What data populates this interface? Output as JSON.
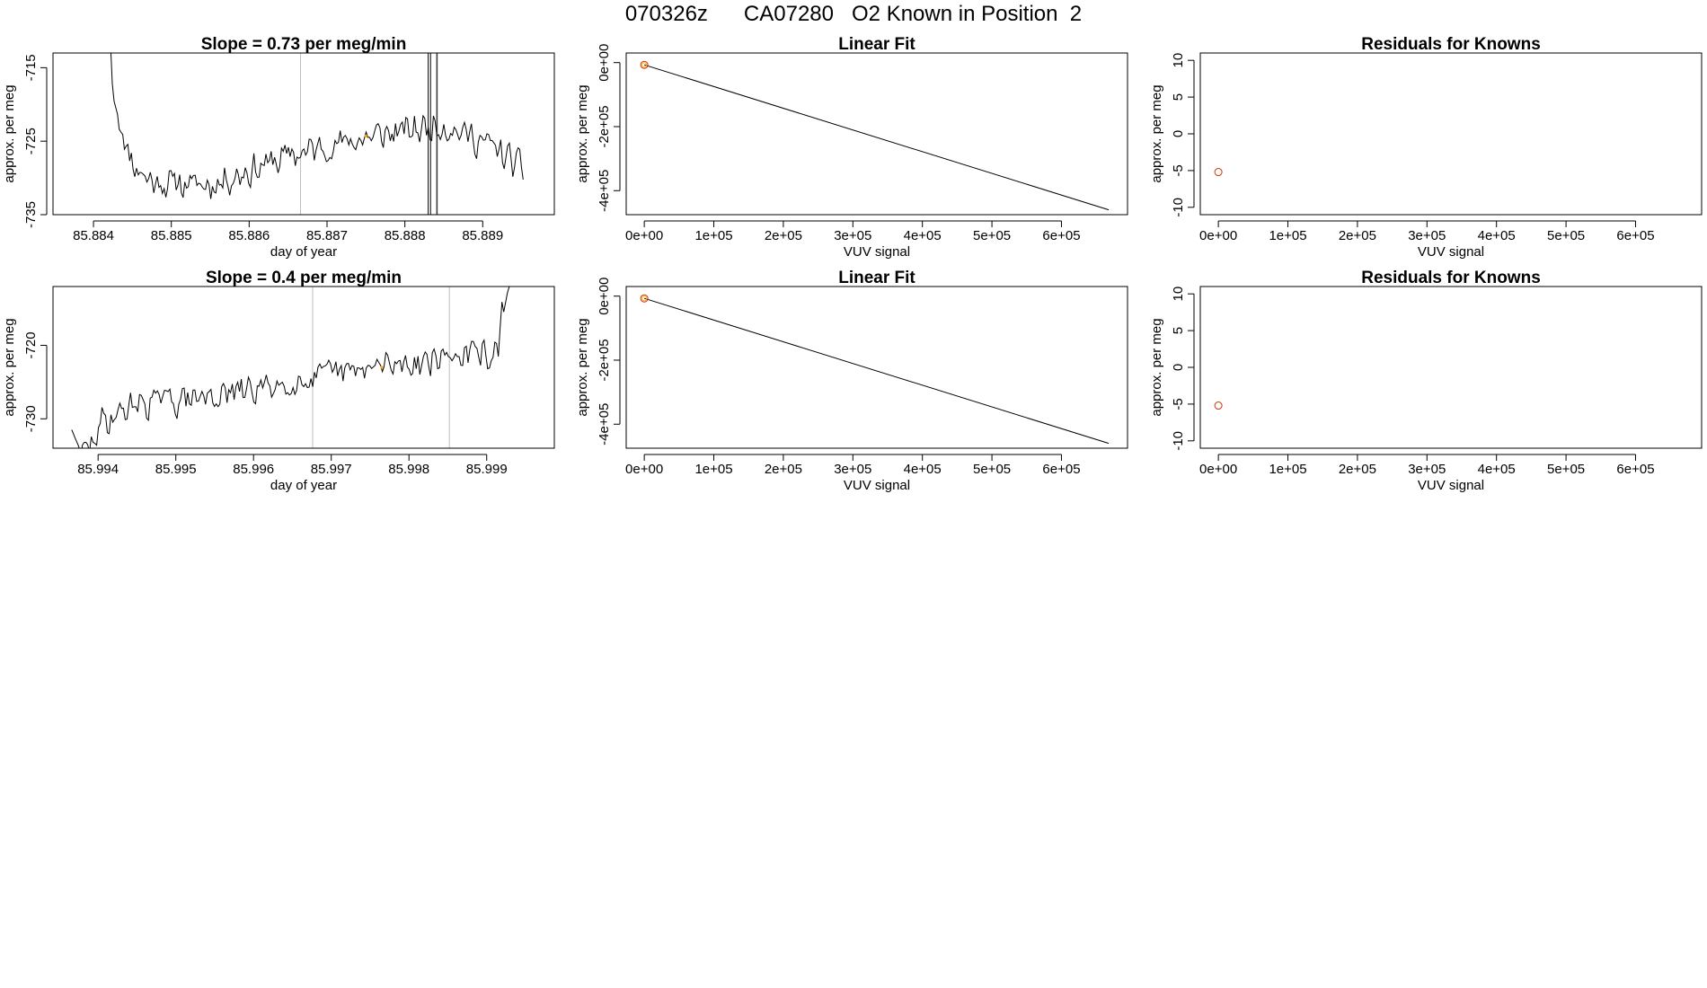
{
  "figure_title": "070326z      CA07280   O2 Known in Position  2",
  "colors": {
    "line": "#000000",
    "vline": "#bebebe",
    "point": "#cc3300",
    "orange": "#ffa500"
  },
  "chart_data": [
    {
      "id": "ts1",
      "type": "line",
      "title": "Slope =  0.73  per meg/min",
      "xlabel": "day of year",
      "ylabel": "approx. per meg",
      "xlim": [
        85.88348,
        85.88992
      ],
      "ylim": [
        -735,
        -713
      ],
      "xticks": [
        85.884,
        85.885,
        85.886,
        85.887,
        85.888,
        85.889
      ],
      "xtick_labels": [
        "85.884",
        "85.885",
        "85.886",
        "85.887",
        "85.888",
        "85.889"
      ],
      "yticks": [
        -735,
        -725,
        -715
      ],
      "ytick_labels": [
        "-735",
        "-725",
        "-715"
      ],
      "vlines": [
        85.88666,
        85.88842
      ],
      "spikes": [
        [
          85.8883,
          -750,
          -705
        ],
        [
          85.88833,
          -705,
          -750
        ],
        [
          85.88841,
          -750,
          -705
        ]
      ],
      "highlight": [
        85.8875,
        -724.3
      ],
      "x_start": 85.88422,
      "x_end": 85.88952,
      "n": 240,
      "seed": 11,
      "knots": [
        [
          85.88422,
          -712
        ],
        [
          85.88425,
          -719
        ],
        [
          85.88435,
          -723
        ],
        [
          85.8845,
          -728
        ],
        [
          85.88475,
          -730.5
        ],
        [
          85.8855,
          -731
        ],
        [
          85.8865,
          -727
        ],
        [
          85.8875,
          -724.5
        ],
        [
          85.8885,
          -722.8
        ],
        [
          85.8891,
          -725.5
        ],
        [
          85.88952,
          -729
        ]
      ]
    },
    {
      "id": "fit1",
      "type": "scatter+line",
      "title": "Linear Fit",
      "xlabel": "VUV signal",
      "ylabel": "approx. per meg",
      "xlim": [
        -26000,
        695000
      ],
      "ylim": [
        -475000,
        30000
      ],
      "xticks": [
        0,
        100000,
        200000,
        300000,
        400000,
        500000,
        600000
      ],
      "xtick_labels": [
        "0e+00",
        "1e+05",
        "2e+05",
        "3e+05",
        "4e+05",
        "5e+05",
        "6e+05"
      ],
      "yticks": [
        0,
        -200000,
        -400000
      ],
      "ytick_labels": [
        "0e+00",
        "-2e+05",
        "-4e+05"
      ],
      "points": [
        [
          0,
          -7000
        ]
      ],
      "fit_line": [
        [
          0,
          -7000
        ],
        [
          668000,
          -460000
        ]
      ]
    },
    {
      "id": "res1",
      "type": "scatter",
      "title": "Residuals for Knowns",
      "xlabel": "VUV signal",
      "ylabel": "approx. per meg",
      "xlim": [
        -26000,
        695000
      ],
      "ylim": [
        -11,
        11
      ],
      "xticks": [
        0,
        100000,
        200000,
        300000,
        400000,
        500000,
        600000
      ],
      "xtick_labels": [
        "0e+00",
        "1e+05",
        "2e+05",
        "3e+05",
        "4e+05",
        "5e+05",
        "6e+05"
      ],
      "yticks": [
        -10,
        -5,
        0,
        5,
        10
      ],
      "ytick_labels": [
        "-10",
        "-5",
        "0",
        "5",
        "10"
      ],
      "points": [
        [
          0,
          -5.2
        ]
      ]
    },
    {
      "id": "ts2",
      "type": "line",
      "title": "Slope =  0.4  per meg/min",
      "xlabel": "day of year",
      "ylabel": "approx. per meg",
      "xlim": [
        85.99342,
        85.99987
      ],
      "ylim": [
        -734,
        -712
      ],
      "xticks": [
        85.994,
        85.995,
        85.996,
        85.997,
        85.998,
        85.999
      ],
      "xtick_labels": [
        "85.994",
        "85.995",
        "85.996",
        "85.997",
        "85.998",
        "85.999"
      ],
      "yticks": [
        -730,
        -720
      ],
      "ytick_labels": [
        "-730",
        "-720"
      ],
      "vlines": [
        85.99676,
        85.99852
      ],
      "spikes": [],
      "highlight": [
        85.99765,
        -723
      ],
      "x_start": 85.99366,
      "x_end": 85.99938,
      "n": 250,
      "seed": 29,
      "knots": [
        [
          85.99366,
          -731.5
        ],
        [
          85.9938,
          -735
        ],
        [
          85.99395,
          -733
        ],
        [
          85.99405,
          -730.5
        ],
        [
          85.9945,
          -727.8
        ],
        [
          85.9955,
          -727
        ],
        [
          85.9965,
          -725
        ],
        [
          85.9975,
          -723.2
        ],
        [
          85.9985,
          -721.5
        ],
        [
          85.99915,
          -721
        ],
        [
          85.9992,
          -716
        ],
        [
          85.99932,
          -711
        ]
      ]
    },
    {
      "id": "fit2",
      "type": "scatter+line",
      "title": "Linear Fit",
      "xlabel": "VUV signal",
      "ylabel": "approx. per meg",
      "xlim": [
        -26000,
        695000
      ],
      "ylim": [
        -475000,
        30000
      ],
      "xticks": [
        0,
        100000,
        200000,
        300000,
        400000,
        500000,
        600000
      ],
      "xtick_labels": [
        "0e+00",
        "1e+05",
        "2e+05",
        "3e+05",
        "4e+05",
        "5e+05",
        "6e+05"
      ],
      "yticks": [
        0,
        -200000,
        -400000
      ],
      "ytick_labels": [
        "0e+00",
        "-2e+05",
        "-4e+05"
      ],
      "points": [
        [
          0,
          -7000
        ]
      ],
      "fit_line": [
        [
          0,
          -7000
        ],
        [
          668000,
          -460000
        ]
      ]
    },
    {
      "id": "res2",
      "type": "scatter",
      "title": "Residuals for Knowns",
      "xlabel": "VUV signal",
      "ylabel": "approx. per meg",
      "xlim": [
        -26000,
        695000
      ],
      "ylim": [
        -11,
        11
      ],
      "xticks": [
        0,
        100000,
        200000,
        300000,
        400000,
        500000,
        600000
      ],
      "xtick_labels": [
        "0e+00",
        "1e+05",
        "2e+05",
        "3e+05",
        "4e+05",
        "5e+05",
        "6e+05"
      ],
      "yticks": [
        -10,
        -5,
        0,
        5,
        10
      ],
      "ytick_labels": [
        "-10",
        "-5",
        "0",
        "5",
        "10"
      ],
      "points": [
        [
          0,
          -5.2
        ]
      ]
    }
  ]
}
